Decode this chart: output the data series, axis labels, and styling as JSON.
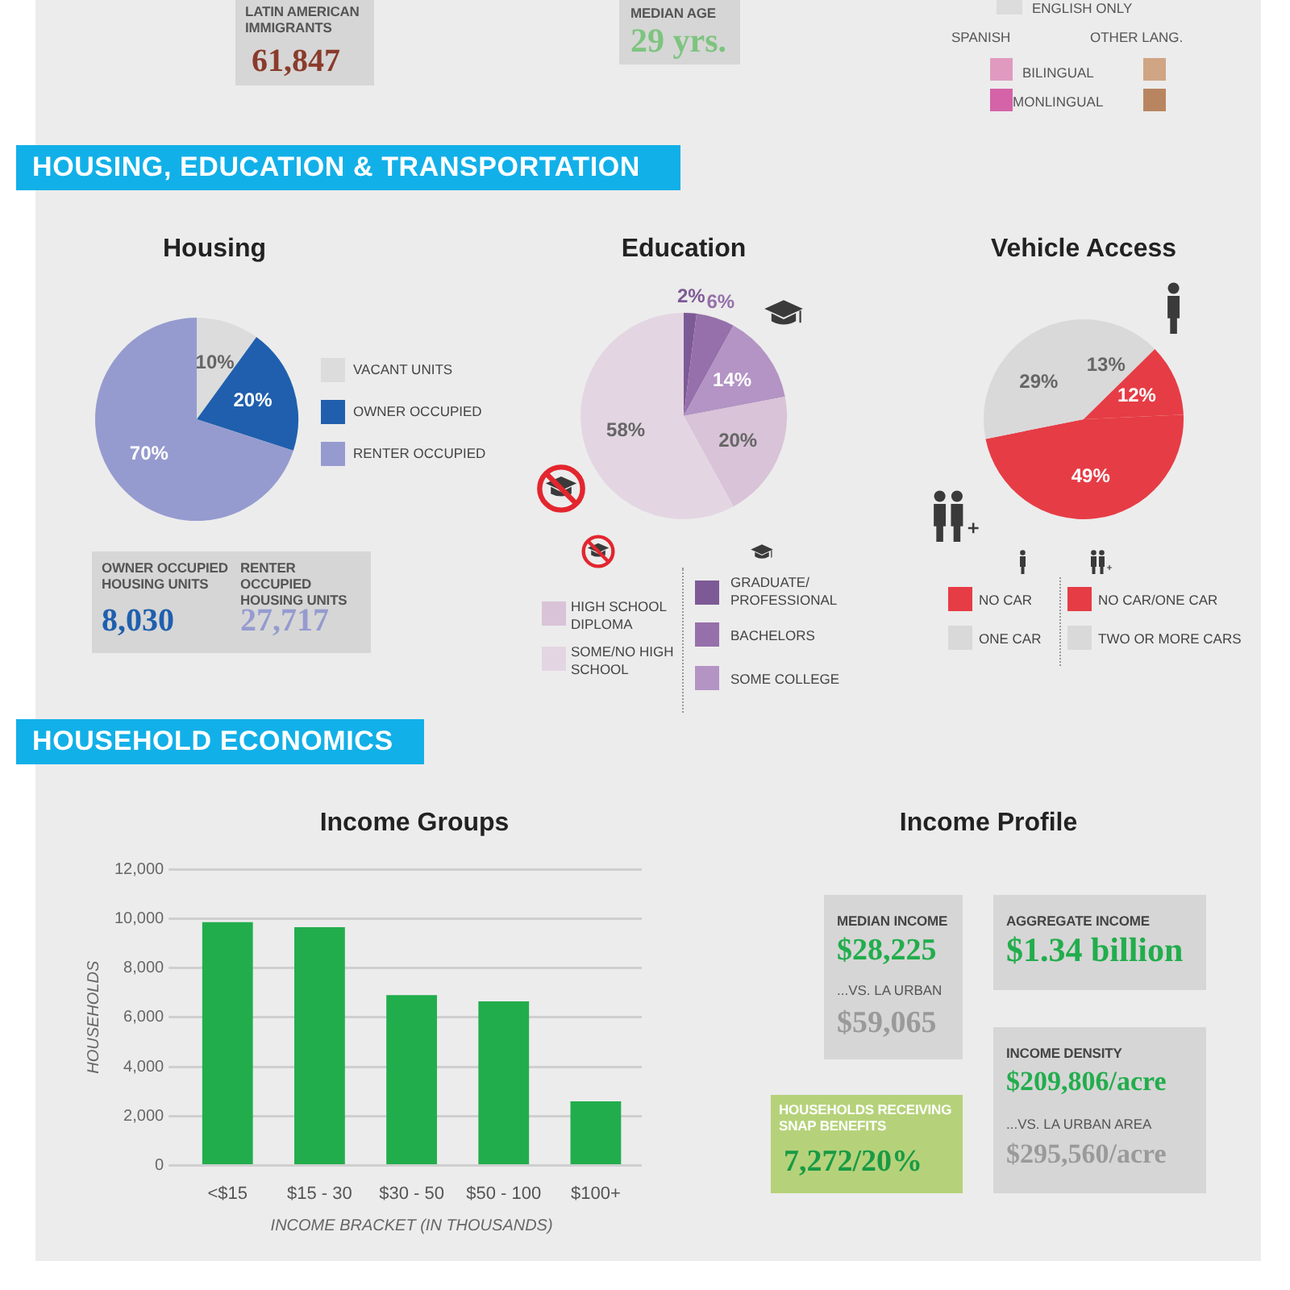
{
  "chart_data": [
    {
      "type": "other",
      "annotations": [
        "LATIN AMERICAN IMMIGRANTS",
        "61,847",
        "MEDIAN AGE",
        "29 yrs.",
        "ENGLISH ONLY",
        "SPANISH",
        "OTHER LANG.",
        "BILINGUAL",
        "MONLINGUAL"
      ],
      "colors": [
        "#dcdcdc",
        "#e09ac0",
        "#d463a8",
        "#cfa584",
        "#b98560"
      ]
    },
    {
      "type": "other",
      "title": "HOUSING, EDUCATION & TRANSPORTATION"
    },
    {
      "type": "pie",
      "title": "Housing",
      "categories": [
        "VACANT UNITS",
        "OWNER OCCUPIED",
        "RENTER OCCUPIED"
      ],
      "values": [
        10,
        20,
        70
      ],
      "colors": [
        "#dcdcdc",
        "#1f5fae",
        "#959bcf"
      ],
      "value_labels": [
        "10%",
        "20%",
        "70%"
      ],
      "legend": "right"
    },
    {
      "type": "other",
      "annotations": [
        "OWNER OCCUPIED HOUSING UNITS",
        "8,030",
        "RENTER OCCUPIED HOUSING UNITS",
        "27,717"
      ]
    },
    {
      "type": "pie",
      "title": "Education",
      "categories": [
        "GRADUATE/ PROFESSIONAL",
        "BACHELORS",
        "SOME COLLEGE",
        "HIGH SCHOOL DIPLOMA",
        "SOME/NO HIGH SCHOOL"
      ],
      "values": [
        2,
        6,
        14,
        20,
        58
      ],
      "colors": [
        "#7d5a96",
        "#9670aa",
        "#b394c4",
        "#d9c3d8",
        "#e3d6e2"
      ],
      "value_labels": [
        "2%",
        "6%",
        "14%",
        "20%",
        "58%"
      ],
      "legend": "bottom"
    },
    {
      "type": "pie",
      "title": "Vehicle Access",
      "categories": [
        "ONE CAR",
        "NO CAR",
        "NO CAR/ONE CAR",
        "TWO OR MORE CARS"
      ],
      "values": [
        13,
        12,
        49,
        29
      ],
      "colors": [
        "#d9d9d9",
        "#e63c45",
        "#e63c45",
        "#d9d9d9"
      ],
      "value_labels": [
        "13%",
        "12%",
        "49%",
        "29%"
      ],
      "legend": "bottom"
    },
    {
      "type": "other",
      "title": "HOUSEHOLD ECONOMICS"
    },
    {
      "type": "bar",
      "title": "Income Groups",
      "categories": [
        "<$15",
        "$15 - 30",
        "$30 - 50",
        "$50 - 100",
        "$100+"
      ],
      "values": [
        9850,
        9650,
        6900,
        6650,
        2600
      ],
      "color": "#22ad4c",
      "xlabel": "INCOME BRACKET (IN THOUSANDS)",
      "ylabel": "HOUSEHOLDS",
      "ylim": [
        0,
        12000
      ],
      "yticks": [
        {
          "value": 0,
          "label": "0"
        },
        {
          "value": 2000,
          "label": "2,000"
        },
        {
          "value": 4000,
          "label": "4,000"
        },
        {
          "value": 6000,
          "label": "6,000"
        },
        {
          "value": 8000,
          "label": "8,000"
        },
        {
          "value": 10000,
          "label": "10,000"
        },
        {
          "value": 12000,
          "label": "12,000"
        }
      ],
      "grid": "y"
    },
    {
      "type": "other",
      "title": "Income Profile",
      "annotations": [
        "MEDIAN INCOME",
        "$28,225",
        "...VS. LA URBAN",
        "$59,065",
        "AGGREGATE INCOME",
        "$1.34 billion",
        "INCOME DENSITY",
        "$209,806/acre",
        "...VS. LA URBAN AREA",
        "$295,560/acre",
        "HOUSEHOLDS RECEIVING SNAP BENEFITS",
        "7,272/20%"
      ]
    }
  ]
}
